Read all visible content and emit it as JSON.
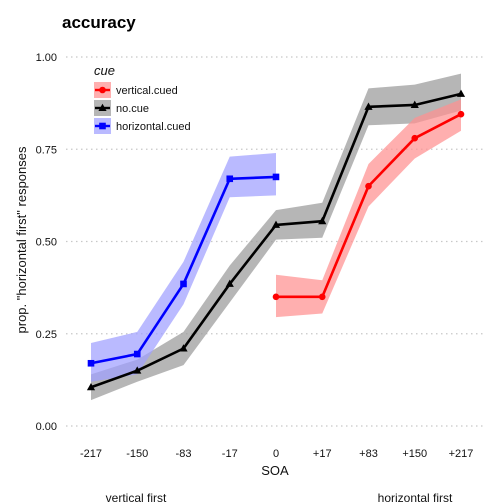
{
  "chart_data": {
    "type": "line",
    "title": "accuracy",
    "xlabel": "SOA",
    "ylabel": "prop. \"horizontal first\" responses",
    "categories": [
      "-217",
      "-150",
      "-83",
      "-17",
      "0",
      "+17",
      "+83",
      "+150",
      "+217"
    ],
    "y_ticks": [
      "0.00",
      "0.25",
      "0.50",
      "0.75",
      "1.00"
    ],
    "ylim": [
      0,
      1
    ],
    "grid": "horizontal dotted",
    "legend": {
      "title": "cue",
      "placement": "top-left",
      "entries": [
        "vertical.cued",
        "no.cue",
        "horizontal.cued"
      ]
    },
    "footer_labels": {
      "left": "vertical first",
      "right": "horizontal first"
    },
    "series": [
      {
        "name": "vertical.cued",
        "color": "#ff0000",
        "band_color": "#ff9090",
        "marker": "circle",
        "x": [
          "0",
          "+17",
          "+83",
          "+150",
          "+217"
        ],
        "values": [
          0.35,
          0.35,
          0.65,
          0.78,
          0.845
        ],
        "lower": [
          0.295,
          0.305,
          0.595,
          0.725,
          0.8
        ],
        "upper": [
          0.41,
          0.395,
          0.71,
          0.835,
          0.885
        ]
      },
      {
        "name": "no.cue",
        "color": "#000000",
        "band_color": "#9a9a9a",
        "marker": "triangle",
        "x": [
          "-217",
          "-150",
          "-83",
          "-17",
          "0",
          "+17",
          "+83",
          "+150",
          "+217"
        ],
        "values": [
          0.105,
          0.15,
          0.21,
          0.385,
          0.545,
          0.555,
          0.865,
          0.87,
          0.9
        ],
        "lower": [
          0.07,
          0.12,
          0.165,
          0.335,
          0.505,
          0.51,
          0.815,
          0.82,
          0.855
        ],
        "upper": [
          0.14,
          0.18,
          0.255,
          0.435,
          0.585,
          0.605,
          0.915,
          0.925,
          0.955
        ]
      },
      {
        "name": "horizontal.cued",
        "color": "#0000ff",
        "band_color": "#9f9fff",
        "marker": "square",
        "x": [
          "-217",
          "-150",
          "-83",
          "-17",
          "0"
        ],
        "values": [
          0.17,
          0.195,
          0.385,
          0.67,
          0.675
        ],
        "lower": [
          0.12,
          0.14,
          0.33,
          0.62,
          0.625
        ],
        "upper": [
          0.225,
          0.255,
          0.445,
          0.73,
          0.74
        ]
      }
    ]
  }
}
